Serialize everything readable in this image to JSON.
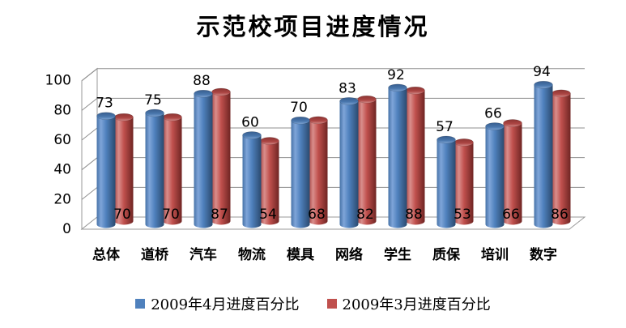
{
  "chart_data": {
    "type": "bar",
    "subtype": "3d-cylinder",
    "title": "示范校项目进度情况",
    "categories": [
      "总体",
      "道桥",
      "汽车",
      "物流",
      "模具",
      "网络",
      "学生",
      "质保",
      "培训",
      "数字"
    ],
    "series": [
      {
        "name": "2009年4月进度百分比",
        "color": "#4F81BD",
        "values": [
          73,
          75,
          88,
          60,
          70,
          83,
          92,
          57,
          66,
          94
        ],
        "label_position": "above-bar"
      },
      {
        "name": "2009年3月进度百分比",
        "color": "#C0504D",
        "values": [
          70,
          70,
          87,
          54,
          68,
          82,
          88,
          53,
          66,
          86
        ],
        "label_position": "inside-base"
      }
    ],
    "xlabel": "",
    "ylabel": "",
    "ylim": [
      0,
      100
    ],
    "yticks": [
      0,
      20,
      40,
      60,
      80,
      100
    ],
    "grid": true,
    "legend_position": "bottom"
  },
  "colors": {
    "background": "#ffffff",
    "grid": "#8f8f8f",
    "wall_stroke": "#9a9a9a",
    "label_text": "#000000",
    "blue_body": [
      "#4672a7",
      "#7fa5d9",
      "#4f81bd",
      "#2b4a6f"
    ],
    "blue_top": [
      "#375d8e",
      "#4a77ad",
      "#7ea4d4"
    ],
    "red_body": [
      "#ad4a48",
      "#d98e8c",
      "#c0504d",
      "#6f2523"
    ],
    "red_top": [
      "#8c3432",
      "#ac4644",
      "#d48a88"
    ]
  }
}
